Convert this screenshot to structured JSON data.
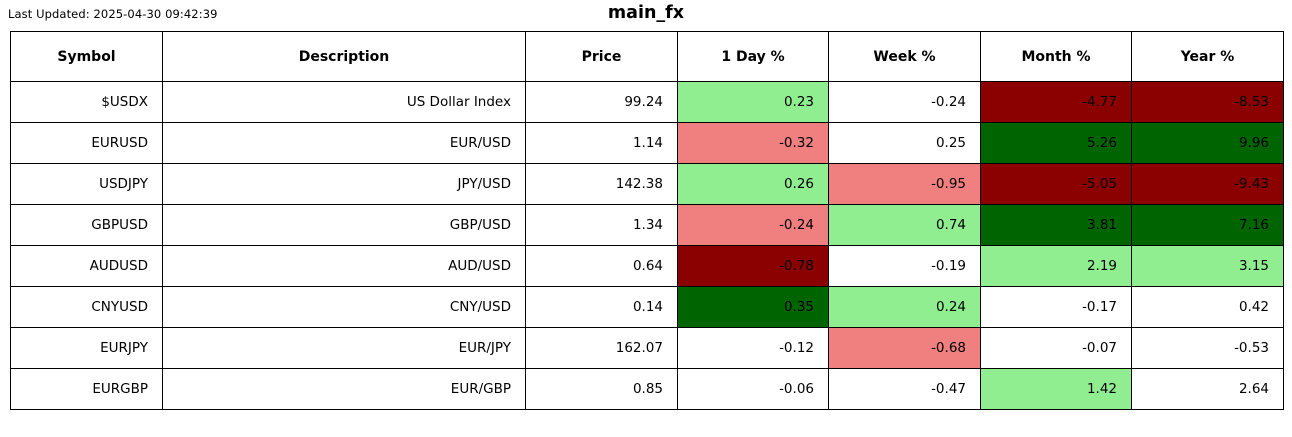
{
  "header": {
    "last_updated": "Last Updated: 2025-04-30 09:42:39"
  },
  "colors": {
    "strong_positive": "#006400",
    "positive": "#90EE90",
    "negative": "#F08080",
    "strong_negative": "#8B0000",
    "neutral": "#FFFFFF",
    "border": "#000000",
    "text": "#000000"
  },
  "chart_data": {
    "type": "table",
    "title": "main_fx",
    "columns": [
      "Symbol",
      "Description",
      "Price",
      "1 Day %",
      "Week %",
      "Month %",
      "Year %"
    ],
    "rows": [
      {
        "symbol": "$USDX",
        "description": "US Dollar Index",
        "price": "99.24",
        "day": {
          "value": "0.23",
          "bg": "#90EE90"
        },
        "week": {
          "value": "-0.24",
          "bg": "#FFFFFF"
        },
        "month": {
          "value": "-4.77",
          "bg": "#8B0000"
        },
        "year": {
          "value": "-8.53",
          "bg": "#8B0000"
        }
      },
      {
        "symbol": "EURUSD",
        "description": "EUR/USD",
        "price": "1.14",
        "day": {
          "value": "-0.32",
          "bg": "#F08080"
        },
        "week": {
          "value": "0.25",
          "bg": "#FFFFFF"
        },
        "month": {
          "value": "5.26",
          "bg": "#006400"
        },
        "year": {
          "value": "9.96",
          "bg": "#006400"
        }
      },
      {
        "symbol": "USDJPY",
        "description": "JPY/USD",
        "price": "142.38",
        "day": {
          "value": "0.26",
          "bg": "#90EE90"
        },
        "week": {
          "value": "-0.95",
          "bg": "#F08080"
        },
        "month": {
          "value": "-5.05",
          "bg": "#8B0000"
        },
        "year": {
          "value": "-9.43",
          "bg": "#8B0000"
        }
      },
      {
        "symbol": "GBPUSD",
        "description": "GBP/USD",
        "price": "1.34",
        "day": {
          "value": "-0.24",
          "bg": "#F08080"
        },
        "week": {
          "value": "0.74",
          "bg": "#90EE90"
        },
        "month": {
          "value": "3.81",
          "bg": "#006400"
        },
        "year": {
          "value": "7.16",
          "bg": "#006400"
        }
      },
      {
        "symbol": "AUDUSD",
        "description": "AUD/USD",
        "price": "0.64",
        "day": {
          "value": "-0.78",
          "bg": "#8B0000"
        },
        "week": {
          "value": "-0.19",
          "bg": "#FFFFFF"
        },
        "month": {
          "value": "2.19",
          "bg": "#90EE90"
        },
        "year": {
          "value": "3.15",
          "bg": "#90EE90"
        }
      },
      {
        "symbol": "CNYUSD",
        "description": "CNY/USD",
        "price": "0.14",
        "day": {
          "value": "0.35",
          "bg": "#006400"
        },
        "week": {
          "value": "0.24",
          "bg": "#90EE90"
        },
        "month": {
          "value": "-0.17",
          "bg": "#FFFFFF"
        },
        "year": {
          "value": "0.42",
          "bg": "#FFFFFF"
        }
      },
      {
        "symbol": "EURJPY",
        "description": "EUR/JPY",
        "price": "162.07",
        "day": {
          "value": "-0.12",
          "bg": "#FFFFFF"
        },
        "week": {
          "value": "-0.68",
          "bg": "#F08080"
        },
        "month": {
          "value": "-0.07",
          "bg": "#FFFFFF"
        },
        "year": {
          "value": "-0.53",
          "bg": "#FFFFFF"
        }
      },
      {
        "symbol": "EURGBP",
        "description": "EUR/GBP",
        "price": "0.85",
        "day": {
          "value": "-0.06",
          "bg": "#FFFFFF"
        },
        "week": {
          "value": "-0.47",
          "bg": "#FFFFFF"
        },
        "month": {
          "value": "1.42",
          "bg": "#90EE90"
        },
        "year": {
          "value": "2.64",
          "bg": "#FFFFFF"
        }
      }
    ]
  }
}
